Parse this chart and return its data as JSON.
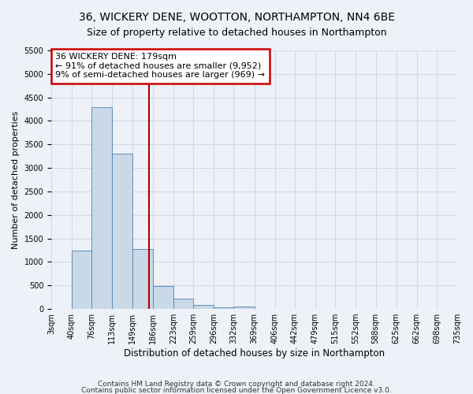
{
  "title1": "36, WICKERY DENE, WOOTTON, NORTHAMPTON, NN4 6BE",
  "title2": "Size of property relative to detached houses in Northampton",
  "xlabel": "Distribution of detached houses by size in Northampton",
  "ylabel": "Number of detached properties",
  "bin_labels": [
    "3sqm",
    "40sqm",
    "76sqm",
    "113sqm",
    "149sqm",
    "186sqm",
    "223sqm",
    "259sqm",
    "296sqm",
    "332sqm",
    "369sqm",
    "406sqm",
    "442sqm",
    "479sqm",
    "515sqm",
    "552sqm",
    "588sqm",
    "625sqm",
    "662sqm",
    "698sqm",
    "735sqm"
  ],
  "bin_edges": [
    3,
    40,
    76,
    113,
    149,
    186,
    223,
    259,
    296,
    332,
    369,
    406,
    442,
    479,
    515,
    552,
    588,
    625,
    662,
    698,
    735
  ],
  "bar_heights": [
    0,
    1250,
    4300,
    3300,
    1280,
    480,
    220,
    90,
    40,
    50,
    0,
    0,
    0,
    0,
    0,
    0,
    0,
    0,
    0,
    0
  ],
  "bar_color": "#c9d9e8",
  "bar_edgecolor": "#5b8db8",
  "grid_color": "#d0d8e8",
  "property_size": 179,
  "vline_color": "#aa0000",
  "annotation_text": "36 WICKERY DENE: 179sqm\n← 91% of detached houses are smaller (9,952)\n9% of semi-detached houses are larger (969) →",
  "annotation_box_edgecolor": "#cc0000",
  "annotation_box_facecolor": "#ffffff",
  "ylim": [
    0,
    5500
  ],
  "yticks": [
    0,
    500,
    1000,
    1500,
    2000,
    2500,
    3000,
    3500,
    4000,
    4500,
    5000,
    5500
  ],
  "footnote1": "Contains HM Land Registry data © Crown copyright and database right 2024.",
  "footnote2": "Contains public sector information licensed under the Open Government Licence v3.0.",
  "bg_color": "#eef2f8",
  "title1_fontsize": 10,
  "title2_fontsize": 9,
  "xlabel_fontsize": 8.5,
  "ylabel_fontsize": 8,
  "tick_fontsize": 7,
  "annot_fontsize": 8
}
